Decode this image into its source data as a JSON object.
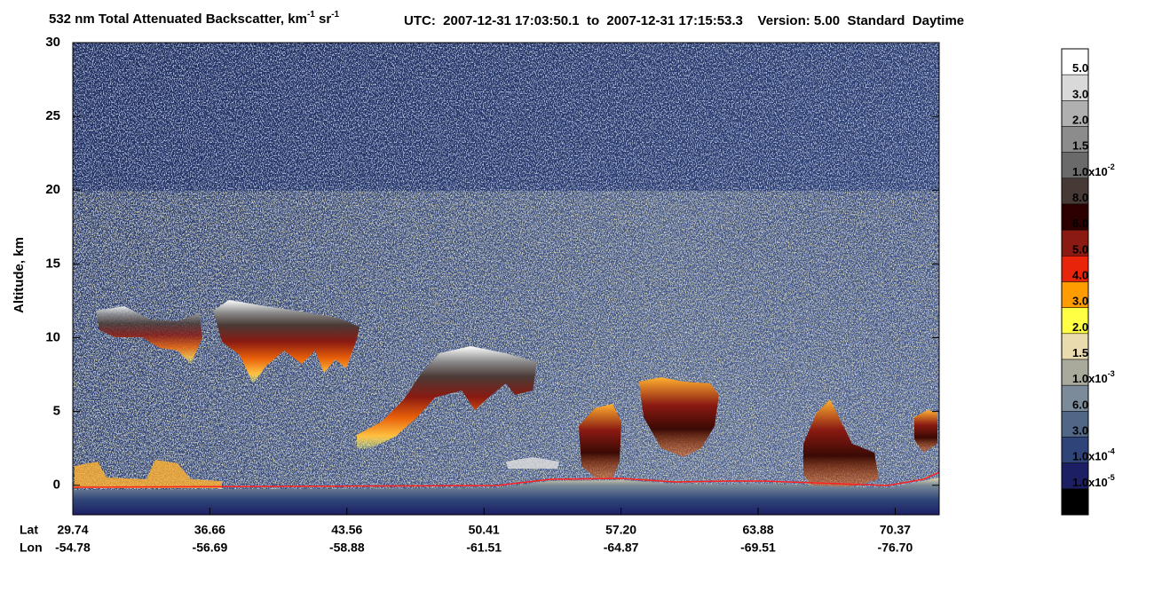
{
  "chart_data": {
    "type": "heatmap",
    "title": [
      {
        "text": "532 nm Total Attenuated Backscatter, km"
      },
      {
        "sup": "-1"
      },
      {
        "text": " sr"
      },
      {
        "sup": "-1"
      }
    ],
    "subtitle": "UTC:  2007-12-31 17:03:50.1  to  2007-12-31 17:15:53.3    Version: 5.00  Standard  Daytime",
    "y_label": "Altitude, km",
    "ylim": [
      -2,
      30
    ],
    "yticks": [
      0,
      5,
      10,
      15,
      20,
      25,
      30
    ],
    "x_row_labels": [
      "Lat",
      "Lon"
    ],
    "x_ticks": [
      {
        "lat": "29.74",
        "lon": "-54.78"
      },
      {
        "lat": "36.66",
        "lon": "-56.69"
      },
      {
        "lat": "43.56",
        "lon": "-58.88"
      },
      {
        "lat": "50.41",
        "lon": "-61.51"
      },
      {
        "lat": "57.20",
        "lon": "-64.87"
      },
      {
        "lat": "63.88",
        "lon": "-69.51"
      },
      {
        "lat": "70.37",
        "lon": "-76.70"
      }
    ],
    "colorbar": {
      "colors": [
        "#ffffff",
        "#d9d9d9",
        "#b0b0b0",
        "#8c8c8c",
        "#6a6a6a",
        "#473a36",
        "#2c0000",
        "#8a1a12",
        "#e8240a",
        "#ff9c00",
        "#ffff44",
        "#e9dbad",
        "#a9aa9c",
        "#7b8b99",
        "#506788",
        "#2f4579",
        "#1d1f64",
        "#000000"
      ],
      "labels": [
        {
          "text": "5.0"
        },
        {
          "text": "3.0"
        },
        {
          "text": "2.0"
        },
        {
          "text": "1.5"
        },
        {
          "text": "1.0x10",
          "sup": "-2"
        },
        {
          "text": "8.0"
        },
        {
          "text": "6.0"
        },
        {
          "text": "5.0"
        },
        {
          "text": "4.0"
        },
        {
          "text": "3.0"
        },
        {
          "text": "2.0"
        },
        {
          "text": "1.5"
        },
        {
          "text": "1.0x10",
          "sup": "-3"
        },
        {
          "text": "6.0"
        },
        {
          "text": "3.0"
        },
        {
          "text": "1.0x10",
          "sup": "-4"
        },
        {
          "text": "1.0x10",
          "sup": "-5"
        }
      ]
    }
  }
}
